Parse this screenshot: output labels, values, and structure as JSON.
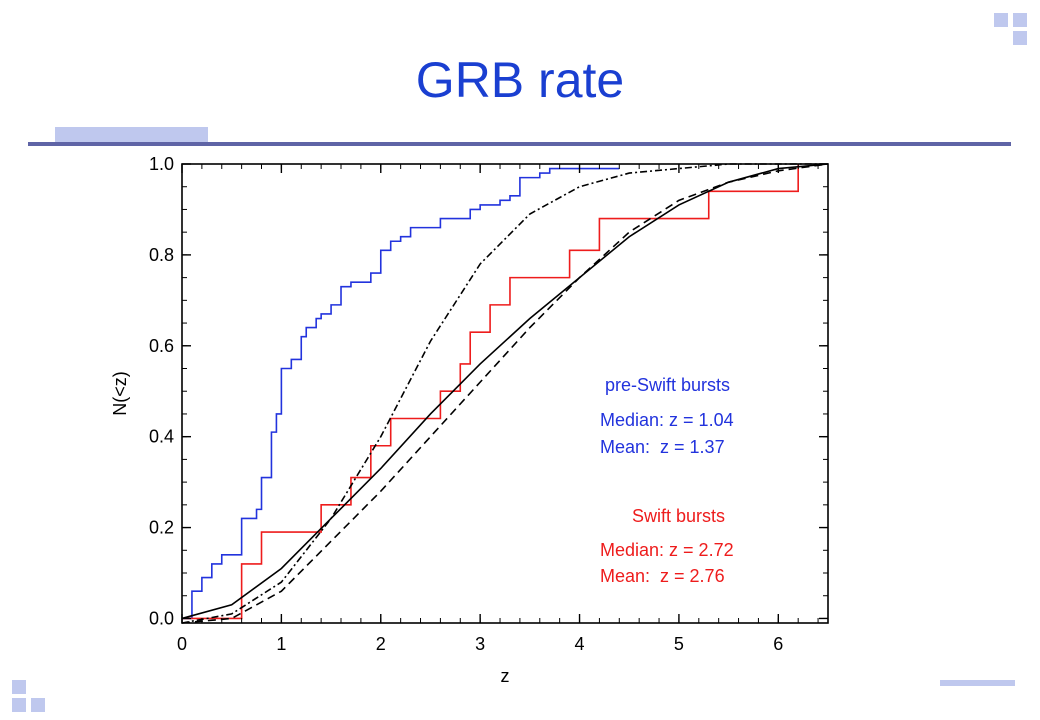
{
  "slide": {
    "title": "GRB rate"
  },
  "colors": {
    "title": "#1a3fd1",
    "pre_swift": "#2233dd",
    "swift": "#ee1c1c",
    "model": "#000000",
    "decor": "#bfc8ee",
    "rule": "#5f64a6"
  },
  "chart_data": {
    "type": "line",
    "xlabel": "z",
    "ylabel": "N(<z)",
    "xlim": [
      0,
      6.5
    ],
    "ylim": [
      -0.01,
      1.0
    ],
    "xticks": [
      "0",
      "1",
      "2",
      "3",
      "4",
      "5",
      "6"
    ],
    "yticks": [
      "0.0",
      "0.2",
      "0.4",
      "0.6",
      "0.8",
      "1.0"
    ],
    "legend": {
      "pre_swift": {
        "title": "pre-Swift bursts",
        "median": "Median: z = 1.04",
        "mean": "Mean:  z = 1.37"
      },
      "swift": {
        "title": "Swift bursts",
        "median": "Median: z = 2.72",
        "mean": "Mean:  z = 2.76"
      }
    },
    "series": [
      {
        "name": "pre-Swift bursts",
        "style": "step",
        "x": [
          0.1,
          0.2,
          0.3,
          0.4,
          0.6,
          0.75,
          0.8,
          0.9,
          0.95,
          1.0,
          1.1,
          1.2,
          1.25,
          1.35,
          1.4,
          1.5,
          1.6,
          1.7,
          1.9,
          2.0,
          2.1,
          2.2,
          2.3,
          2.6,
          2.9,
          3.0,
          3.2,
          3.3,
          3.4,
          3.6,
          3.7,
          4.4
        ],
        "y": [
          0.06,
          0.09,
          0.12,
          0.14,
          0.22,
          0.24,
          0.31,
          0.41,
          0.45,
          0.55,
          0.57,
          0.62,
          0.64,
          0.66,
          0.67,
          0.69,
          0.73,
          0.74,
          0.76,
          0.81,
          0.83,
          0.84,
          0.86,
          0.88,
          0.9,
          0.91,
          0.92,
          0.93,
          0.97,
          0.98,
          0.99,
          0.99
        ]
      },
      {
        "name": "Swift bursts",
        "style": "step",
        "x": [
          0.6,
          0.8,
          1.4,
          1.6,
          1.7,
          1.9,
          2.1,
          2.6,
          2.8,
          2.9,
          3.1,
          3.3,
          3.6,
          3.9,
          4.2,
          5.3,
          6.2
        ],
        "y": [
          0.12,
          0.19,
          0.25,
          0.25,
          0.31,
          0.38,
          0.44,
          0.5,
          0.56,
          0.63,
          0.69,
          0.75,
          0.75,
          0.81,
          0.88,
          0.94,
          1.0
        ]
      },
      {
        "style": "solid",
        "x": [
          0.0,
          0.5,
          1.0,
          1.5,
          2.0,
          2.5,
          3.0,
          3.5,
          4.0,
          4.5,
          5.0,
          5.5,
          6.0,
          6.5
        ],
        "y": [
          0.0,
          0.03,
          0.11,
          0.22,
          0.33,
          0.45,
          0.56,
          0.66,
          0.75,
          0.84,
          0.91,
          0.96,
          0.99,
          1.0
        ]
      },
      {
        "style": "dashed",
        "x": [
          0.0,
          0.5,
          1.0,
          1.5,
          2.0,
          2.5,
          3.0,
          3.5,
          4.0,
          4.5,
          5.0,
          5.5,
          6.0,
          6.5
        ],
        "y": [
          -0.01,
          0.0,
          0.06,
          0.17,
          0.28,
          0.4,
          0.52,
          0.64,
          0.75,
          0.85,
          0.92,
          0.96,
          0.985,
          1.0
        ]
      },
      {
        "style": "dashdot",
        "x": [
          0.0,
          0.5,
          1.0,
          1.5,
          2.0,
          2.5,
          3.0,
          3.5,
          4.0,
          4.5,
          5.0,
          5.5,
          6.0,
          6.5
        ],
        "y": [
          -0.01,
          0.01,
          0.08,
          0.22,
          0.4,
          0.61,
          0.78,
          0.89,
          0.95,
          0.98,
          0.99,
          1.0,
          1.0,
          1.0
        ]
      }
    ]
  }
}
